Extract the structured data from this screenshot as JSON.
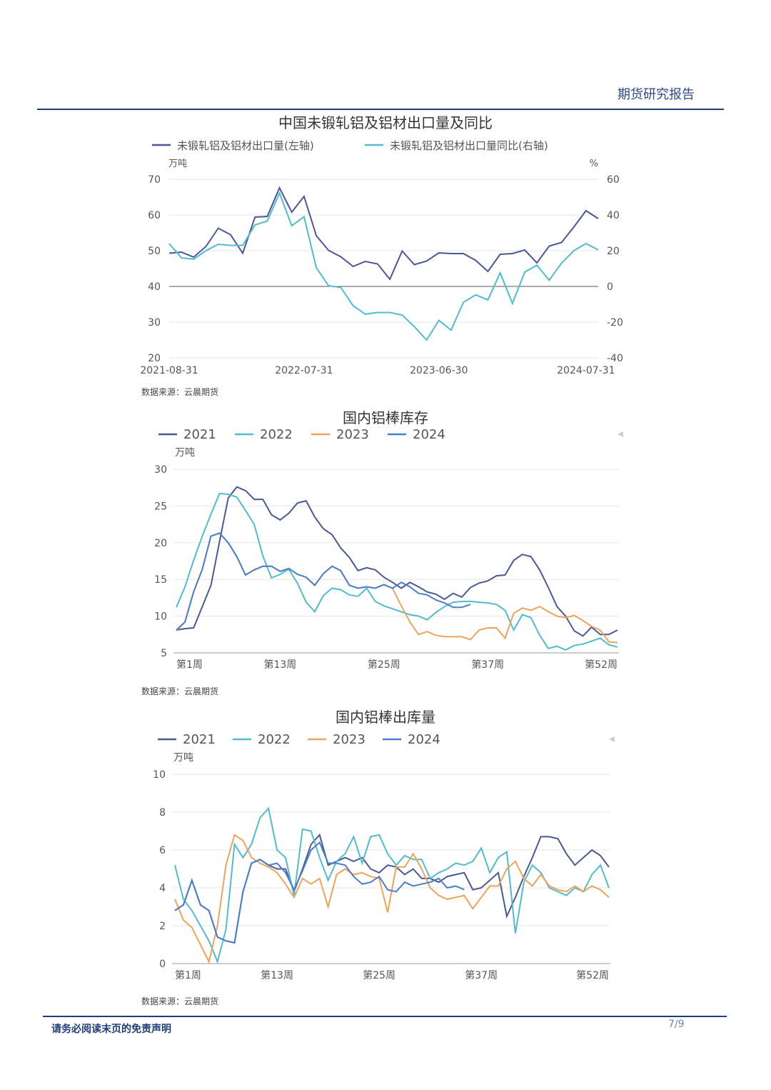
{
  "header": {
    "title": "期货研究报告"
  },
  "footer": {
    "disclaimer": "请务必阅读末页的免责声明",
    "page": "7/9"
  },
  "chart_data": [
    {
      "type": "line",
      "title": "中国未锻轧铝及铝材出口量及同比",
      "source": "数据来源：云晨期货",
      "left_unit": "万吨",
      "right_unit": "%",
      "left_ylim": [
        20,
        70
      ],
      "left_ticks": [
        "20",
        "30",
        "40",
        "50",
        "60",
        "70"
      ],
      "right_ylim": [
        -40,
        60
      ],
      "right_ticks": [
        "-40",
        "-20",
        "0",
        "20",
        "40",
        "60"
      ],
      "x_tick_labels": [
        "2021-08-31",
        "2022-07-31",
        "2023-06-30",
        "2024-07-31"
      ],
      "x_tick_index": [
        0,
        11,
        22,
        34
      ],
      "series": [
        {
          "name": "未锻轧铝及铝材出口量(左轴)",
          "axis": "left",
          "color": "#4b5897",
          "values": [
            49.3,
            49.6,
            48.2,
            51.2,
            56.3,
            54.5,
            49.3,
            59.4,
            59.6,
            67.6,
            60.8,
            65.2,
            54.2,
            50.1,
            48.3,
            45.6,
            47.0,
            46.3,
            42.0,
            49.9,
            46.1,
            47.1,
            49.4,
            49.2,
            49.2,
            47.3,
            44.2,
            49.0,
            49.2,
            50.2,
            46.6,
            51.3,
            52.3,
            56.6,
            61.2,
            59.0
          ]
        },
        {
          "name": "未锻轧铝及铝材出口量同比(右轴)",
          "axis": "right",
          "color": "#4fbcd0",
          "values": [
            24.0,
            16.0,
            15.3,
            20.0,
            23.6,
            23.0,
            23.0,
            34.5,
            36.6,
            52.3,
            34.0,
            39.0,
            10.5,
            0.4,
            -0.6,
            -10.8,
            -15.5,
            -14.6,
            -14.6,
            -16.0,
            -22.5,
            -30.0,
            -19.0,
            -24.5,
            -8.9,
            -4.7,
            -7.5,
            7.6,
            -9.5,
            8.0,
            11.9,
            3.5,
            13.0,
            20.0,
            24.0,
            20.5
          ]
        }
      ]
    },
    {
      "type": "line",
      "title": "国内铝棒库存",
      "source": "数据来源：云晨期货",
      "unit": "万吨",
      "ylim": [
        5,
        30
      ],
      "y_ticks": [
        "5",
        "10",
        "15",
        "20",
        "25",
        "30"
      ],
      "x_range": [
        1,
        52
      ],
      "x_tick_labels": [
        "第1周",
        "第13周",
        "第25周",
        "第37周",
        "第52周"
      ],
      "x_tick_weeks": [
        1,
        13,
        25,
        37,
        52
      ],
      "legend": [
        "2021",
        "2022",
        "2023",
        "2024"
      ],
      "series": [
        {
          "name": "2021",
          "color": "#4b5897",
          "start_week": 1,
          "values": [
            8.1,
            8.3,
            8.4,
            11.3,
            14.2,
            20.2,
            26.1,
            27.6,
            27.1,
            25.9,
            25.9,
            23.8,
            23.1,
            24.0,
            25.4,
            25.7,
            23.5,
            21.9,
            21.1,
            19.3,
            18.0,
            16.2,
            16.6,
            16.3,
            15.3,
            14.6,
            13.8,
            14.6,
            14.0,
            13.3,
            13.0,
            12.3,
            13.1,
            12.6,
            13.9,
            14.5,
            14.8,
            15.5,
            15.6,
            17.6,
            18.4,
            18.1,
            16.3,
            13.9,
            11.3,
            10.0,
            8.0,
            7.3,
            8.5,
            7.5,
            7.5,
            8.1
          ]
        },
        {
          "name": "2022",
          "color": "#4fbcd0",
          "start_week": 1,
          "values": [
            11.2,
            14.0,
            17.6,
            20.9,
            23.9,
            26.7,
            26.6,
            26.2,
            24.4,
            22.5,
            18.2,
            15.2,
            15.7,
            16.4,
            14.5,
            11.9,
            10.6,
            12.8,
            13.8,
            13.6,
            12.9,
            12.7,
            13.8,
            12.0,
            11.4,
            11.0,
            10.6,
            10.2,
            10.0,
            9.5,
            10.5,
            11.3,
            11.9,
            12.0,
            12.0,
            11.9,
            11.8,
            11.6,
            10.8,
            8.1,
            10.2,
            9.8,
            7.4,
            5.6,
            5.9,
            5.4,
            6.0,
            6.2,
            6.6,
            7.0,
            6.1,
            5.8
          ]
        },
        {
          "name": "2023",
          "color": "#f0a358",
          "start_week": 1,
          "values": [
            8.0,
            9.2,
            13.3,
            16.4,
            20.9,
            21.3,
            20.0,
            18.1,
            15.6,
            16.3,
            16.8,
            16.8,
            16.1,
            16.5,
            15.7,
            15.3,
            14.2,
            15.8,
            16.8,
            16.2,
            14.2,
            13.8,
            14.0,
            13.8,
            14.3,
            13.8,
            11.4,
            9.2,
            7.5,
            7.9,
            7.4,
            7.2,
            7.2,
            7.2,
            6.8,
            8.1,
            8.4,
            8.4,
            7.0,
            10.4,
            11.1,
            10.8,
            11.3,
            10.6,
            10.0,
            9.8,
            10.1,
            9.4,
            8.6,
            8.1,
            6.5,
            6.4
          ]
        },
        {
          "name": "2024",
          "color": "#4b7ec9",
          "start_week": 1,
          "values": [
            8.1,
            9.2,
            13.3,
            16.4,
            20.9,
            21.3,
            20.0,
            18.1,
            15.6,
            16.3,
            16.8,
            16.8,
            16.1,
            16.5,
            15.7,
            15.3,
            14.2,
            15.8,
            16.8,
            16.2,
            14.2,
            13.8,
            14.0,
            13.8,
            14.3,
            13.8,
            14.6,
            14.0,
            13.1,
            12.9,
            12.2,
            11.8,
            11.2,
            11.2,
            11.6
          ]
        }
      ]
    },
    {
      "type": "line",
      "title": "国内铝棒出库量",
      "source": "数据来源：云晨期货",
      "unit": "万吨",
      "ylim": [
        0,
        10
      ],
      "y_ticks": [
        "0",
        "2",
        "4",
        "6",
        "8",
        "10"
      ],
      "x_range": [
        1,
        52
      ],
      "x_tick_labels": [
        "第1周",
        "第13周",
        "第25周",
        "第37周",
        "第52周"
      ],
      "x_tick_weeks": [
        1,
        13,
        25,
        37,
        52
      ],
      "legend": [
        "2021",
        "2022",
        "2023",
        "2024"
      ],
      "series": [
        {
          "name": "2021",
          "color": "#4b5897",
          "start_week": 1,
          "values": [
            2.8,
            3.1,
            4.4,
            3.1,
            2.8,
            1.4,
            1.2,
            1.1,
            3.8,
            5.3,
            5.5,
            5.2,
            5.0,
            5.0,
            3.8,
            5.0,
            6.3,
            6.8,
            5.2,
            5.4,
            5.6,
            5.4,
            5.6,
            5.0,
            4.8,
            5.2,
            5.1,
            4.7,
            5.0,
            4.5,
            4.5,
            4.3,
            4.6,
            4.7,
            4.8,
            3.9,
            4.0,
            4.4,
            4.8,
            2.5,
            3.5,
            4.6,
            5.6,
            6.7,
            6.7,
            6.6,
            5.8,
            5.2,
            5.6,
            6.0,
            5.7,
            5.1
          ]
        },
        {
          "name": "2022",
          "color": "#4fbcd0",
          "start_week": 1,
          "values": [
            5.2,
            3.4,
            2.8,
            2.0,
            1.2,
            0.1,
            1.8,
            6.3,
            5.6,
            6.3,
            7.7,
            8.2,
            6.0,
            5.6,
            3.6,
            7.1,
            7.0,
            5.6,
            4.4,
            5.4,
            5.8,
            6.7,
            5.3,
            6.7,
            6.8,
            5.8,
            5.2,
            5.7,
            5.5,
            5.5,
            4.5,
            4.8,
            5.0,
            5.3,
            5.2,
            5.4,
            6.1,
            4.8,
            5.6,
            5.9,
            1.6,
            4.3,
            5.2,
            4.8,
            4.0,
            3.8,
            3.6,
            4.0,
            3.8,
            4.7,
            5.2,
            4.0
          ]
        },
        {
          "name": "2023",
          "color": "#f0a358",
          "start_week": 1,
          "values": [
            3.4,
            2.3,
            1.9,
            1.0,
            0.1,
            2.0,
            5.2,
            6.8,
            6.5,
            5.6,
            5.3,
            5.1,
            4.8,
            4.2,
            3.5,
            4.5,
            4.2,
            4.5,
            3.0,
            4.7,
            5.0,
            4.7,
            4.8,
            4.6,
            4.5,
            2.7,
            5.1,
            5.1,
            5.8,
            5.0,
            4.0,
            3.6,
            3.4,
            3.5,
            3.6,
            2.9,
            3.5,
            4.1,
            4.1,
            5.0,
            5.4,
            4.5,
            4.1,
            4.7,
            4.1,
            3.9,
            3.8,
            4.1,
            3.8,
            4.1,
            3.9,
            3.5
          ]
        },
        {
          "name": "2024",
          "color": "#4b7ec9",
          "start_week": 1,
          "values": [
            2.8,
            3.1,
            4.4,
            3.1,
            2.8,
            1.4,
            1.2,
            1.1,
            3.8,
            5.3,
            5.5,
            5.2,
            5.3,
            4.8,
            3.9,
            4.9,
            6.0,
            6.4,
            5.3,
            5.3,
            5.2,
            4.6,
            4.2,
            4.3,
            4.6,
            3.9,
            3.8,
            4.3,
            4.1,
            4.2,
            4.3,
            4.5,
            4.0,
            4.1,
            3.9
          ]
        }
      ]
    }
  ]
}
